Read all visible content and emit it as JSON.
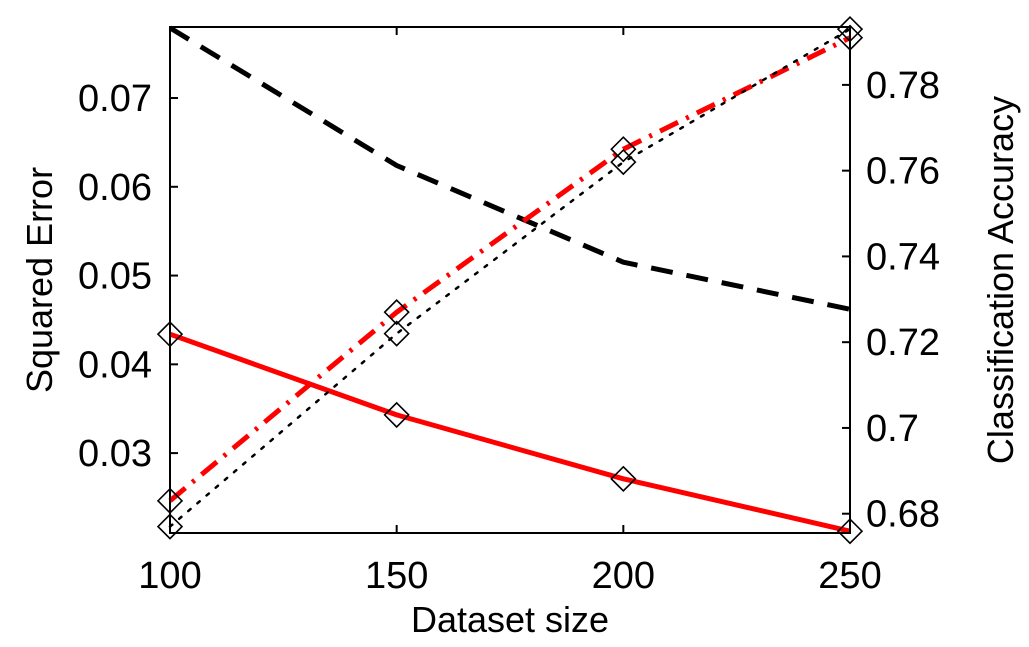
{
  "chart_data": {
    "type": "line",
    "xlabel": "Dataset size",
    "ylabel_left": "Squared Error",
    "ylabel_right": "Classification Accuracy",
    "x_ticks": [
      "100",
      "150",
      "200",
      "250"
    ],
    "y_left_ticks": [
      "0.03",
      "0.04",
      "0.05",
      "0.06",
      "0.07"
    ],
    "y_right_ticks": [
      "0.68",
      "0.7",
      "0.72",
      "0.74",
      "0.76",
      "0.78"
    ],
    "xlim": [
      100,
      250
    ],
    "ylim_left": [
      0.021,
      0.078
    ],
    "ylim_right": [
      0.6755,
      0.7935
    ],
    "grid": false,
    "series": [
      {
        "axis": "left",
        "color": "#ff0000",
        "dash": "solid",
        "markers": true,
        "x": [
          100,
          150,
          200,
          250
        ],
        "values": [
          0.0434,
          0.0343,
          0.0271,
          0.0212
        ]
      },
      {
        "axis": "left",
        "color": "#000000",
        "dash": "dashed",
        "markers": false,
        "x": [
          100,
          150,
          200,
          250
        ],
        "values": [
          0.0779,
          0.0624,
          0.0515,
          0.0462
        ]
      },
      {
        "axis": "right",
        "color": "#ff0000",
        "dash": "dashdot",
        "markers": true,
        "x": [
          100,
          150,
          200,
          250
        ],
        "values": [
          0.683,
          0.727,
          0.765,
          0.791
        ]
      },
      {
        "axis": "right",
        "color": "#000000",
        "dash": "dotted",
        "markers": true,
        "x": [
          100,
          150,
          200,
          250
        ],
        "values": [
          0.677,
          0.722,
          0.762,
          0.793
        ]
      }
    ]
  }
}
